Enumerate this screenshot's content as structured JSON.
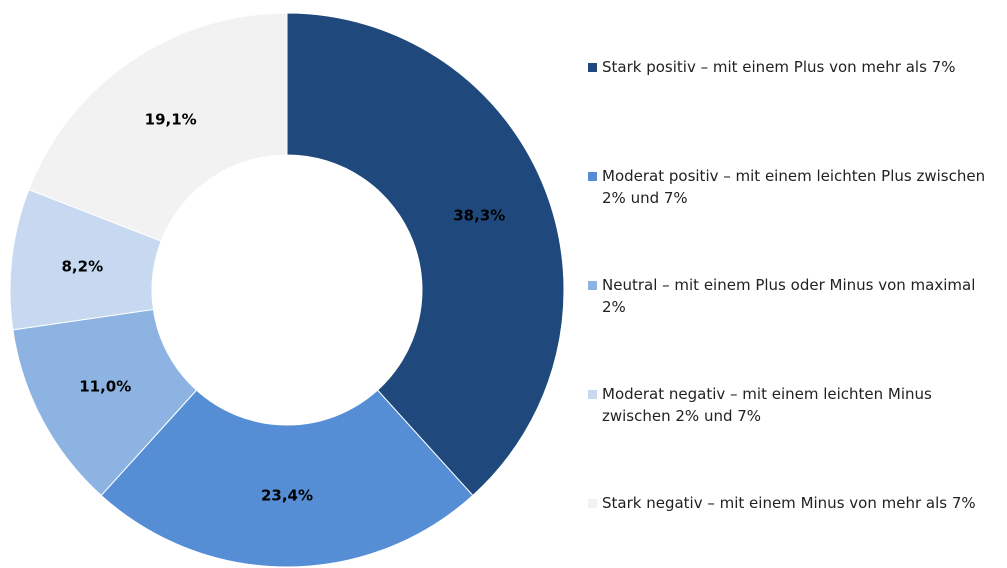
{
  "chart_data": {
    "type": "pie",
    "donut": true,
    "categories": [
      "Stark positiv – mit einem Plus von mehr als 7%",
      "Moderat positiv – mit einem leichten Plus zwischen 2% und 7%",
      "Neutral – mit einem Plus oder Minus von maximal 2%",
      "Moderat negativ – mit einem leichten Minus zwischen 2% und 7%",
      "Stark negativ – mit einem Minus von mehr als 7%"
    ],
    "values": [
      38.3,
      23.4,
      11.0,
      8.2,
      19.1
    ],
    "value_labels": [
      "38,3%",
      "23,4%",
      "11,0%",
      "8,2%",
      "19,1%"
    ],
    "colors": [
      "#1f497d",
      "#558ed5",
      "#8db3e2",
      "#c6d9f1",
      "#f2f2f2"
    ]
  }
}
